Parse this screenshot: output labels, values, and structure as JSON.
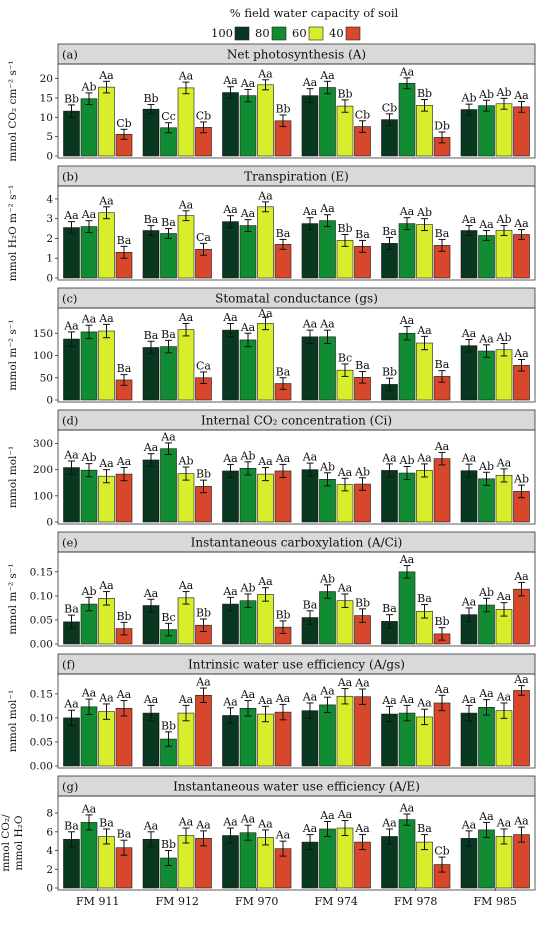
{
  "legend": {
    "title": "% field water capacity of soil",
    "items": [
      {
        "label": "100",
        "color": "#08381f"
      },
      {
        "label": "80",
        "color": "#118c32"
      },
      {
        "label": "60",
        "color": "#d8ee2c"
      },
      {
        "label": "40",
        "color": "#d7472b"
      }
    ]
  },
  "chart_data": [
    {
      "type": "bar",
      "letter": "(a)",
      "title": "Net photosynthesis (A)",
      "ylabel": [
        "mmol CO₂ cm⁻² s⁻¹"
      ],
      "ylim": [
        0,
        23
      ],
      "yticks": [
        0,
        5,
        10,
        15,
        20
      ],
      "categories": [
        "FM 911",
        "FM 912",
        "FM 970",
        "FM 974",
        "FM 978",
        "FM 985"
      ],
      "series": [
        {
          "name": "100",
          "values": [
            11.6,
            12.1,
            16.4,
            15.6,
            9.4,
            12.0
          ],
          "errors": [
            1.6,
            1.2,
            1.5,
            1.8,
            1.5,
            1.4
          ],
          "labels": [
            "Bb",
            "Bb",
            "Aa",
            "Aa",
            "Cb",
            "Ab"
          ]
        },
        {
          "name": "80",
          "values": [
            14.8,
            7.3,
            15.6,
            17.7,
            18.8,
            13.0
          ],
          "errors": [
            1.5,
            1.3,
            1.6,
            1.6,
            1.4,
            1.4
          ],
          "labels": [
            "Ab",
            "Cc",
            "Aa",
            "Aa",
            "Aa",
            "Ab"
          ]
        },
        {
          "name": "60",
          "values": [
            17.8,
            17.6,
            18.4,
            12.9,
            13.1,
            13.5
          ],
          "errors": [
            1.5,
            1.5,
            1.3,
            1.6,
            1.5,
            1.4
          ],
          "labels": [
            "Aa",
            "Aa",
            "Aa",
            "Bb",
            "Bb",
            "Ab"
          ]
        },
        {
          "name": "40",
          "values": [
            5.6,
            7.4,
            9.1,
            7.6,
            4.8,
            12.7
          ],
          "errors": [
            1.3,
            1.4,
            1.5,
            1.5,
            1.4,
            1.4
          ],
          "labels": [
            "Cb",
            "Cb",
            "Bb",
            "Cb",
            "Db",
            "Aa"
          ]
        }
      ]
    },
    {
      "type": "bar",
      "letter": "(b)",
      "title": "Transpiration (E)",
      "ylabel": [
        "mmol H₂O m⁻² s⁻¹"
      ],
      "ylim": [
        0,
        4.5
      ],
      "yticks": [
        0,
        1,
        2,
        3,
        4
      ],
      "categories": [
        "FM 911",
        "FM 912",
        "FM 970",
        "FM 974",
        "FM 978",
        "FM 985"
      ],
      "series": [
        {
          "name": "100",
          "values": [
            2.55,
            2.4,
            2.85,
            2.75,
            1.75,
            2.4
          ],
          "errors": [
            0.3,
            0.25,
            0.3,
            0.3,
            0.3,
            0.25
          ],
          "labels": [
            "Aa",
            "Ba",
            "Aa",
            "Aa",
            "Ba",
            "Aa"
          ]
        },
        {
          "name": "80",
          "values": [
            2.6,
            2.25,
            2.65,
            2.9,
            2.75,
            2.15
          ],
          "errors": [
            0.3,
            0.25,
            0.3,
            0.3,
            0.3,
            0.25
          ],
          "labels": [
            "Aa",
            "Ba",
            "Aa",
            "Aa",
            "Aa",
            "Aa"
          ]
        },
        {
          "name": "60",
          "values": [
            3.3,
            3.15,
            3.6,
            1.9,
            2.7,
            2.4
          ],
          "errors": [
            0.3,
            0.25,
            0.25,
            0.3,
            0.3,
            0.25
          ],
          "labels": [
            "Aa",
            "Aa",
            "Aa",
            "Bb",
            "Ab",
            "Ab"
          ]
        },
        {
          "name": "40",
          "values": [
            1.3,
            1.45,
            1.7,
            1.6,
            1.65,
            2.2
          ],
          "errors": [
            0.3,
            0.3,
            0.25,
            0.3,
            0.3,
            0.25
          ],
          "labels": [
            "Ba",
            "Ca",
            "Ba",
            "Ba",
            "Ba",
            "Aa"
          ]
        }
      ]
    },
    {
      "type": "bar",
      "letter": "(c)",
      "title": "Stomatal conductance (gs)",
      "ylabel": [
        "mmol m⁻² s⁻¹"
      ],
      "ylim": [
        0,
        200
      ],
      "yticks": [
        0,
        50,
        100,
        150
      ],
      "categories": [
        "FM 911",
        "FM 912",
        "FM 970",
        "FM 974",
        "FM 978",
        "FM 985"
      ],
      "series": [
        {
          "name": "100",
          "values": [
            137,
            118,
            157,
            142,
            35,
            122
          ],
          "errors": [
            16,
            14,
            15,
            15,
            14,
            14
          ],
          "labels": [
            "Aa",
            "Ba",
            "Aa",
            "Aa",
            "Bb",
            "Aa"
          ]
        },
        {
          "name": "80",
          "values": [
            153,
            120,
            135,
            142,
            150,
            110
          ],
          "errors": [
            15,
            14,
            15,
            15,
            15,
            14
          ],
          "labels": [
            "Aa",
            "Ba",
            "Aa",
            "Aa",
            "Aa",
            "Aa"
          ]
        },
        {
          "name": "60",
          "values": [
            155,
            158,
            172,
            67,
            128,
            113
          ],
          "errors": [
            15,
            14,
            14,
            14,
            15,
            14
          ],
          "labels": [
            "Aa",
            "Aa",
            "Aa",
            "Bc",
            "Aa",
            "Ab"
          ]
        },
        {
          "name": "40",
          "values": [
            45,
            50,
            37,
            51,
            53,
            78
          ],
          "errors": [
            12,
            13,
            13,
            13,
            13,
            13
          ],
          "labels": [
            "Ba",
            "Ca",
            "Ba",
            "Ba",
            "Ba",
            "Aa"
          ]
        }
      ]
    },
    {
      "type": "bar",
      "letter": "(d)",
      "title": "Internal CO₂ concentration (Ci)",
      "ylabel": [
        "mmol mol⁻¹"
      ],
      "ylim": [
        0,
        340
      ],
      "yticks": [
        0,
        100,
        200,
        300
      ],
      "categories": [
        "FM 911",
        "FM 912",
        "FM 970",
        "FM 974",
        "FM 978",
        "FM 985"
      ],
      "series": [
        {
          "name": "100",
          "values": [
            208,
            237,
            195,
            200,
            197,
            196
          ],
          "errors": [
            25,
            24,
            25,
            25,
            25,
            25
          ],
          "labels": [
            "Aa",
            "Aa",
            "Aa",
            "Aa",
            "Aa",
            "Aa"
          ]
        },
        {
          "name": "80",
          "values": [
            198,
            280,
            205,
            163,
            187,
            165
          ],
          "errors": [
            25,
            22,
            25,
            25,
            25,
            25
          ],
          "labels": [
            "Ab",
            "Aa",
            "Ab",
            "Ab",
            "Ab",
            "Ab"
          ]
        },
        {
          "name": "60",
          "values": [
            175,
            185,
            183,
            143,
            197,
            178
          ],
          "errors": [
            25,
            25,
            25,
            24,
            25,
            25
          ],
          "labels": [
            "Aa",
            "Ab",
            "Aa",
            "Aa",
            "Aa",
            "Aa"
          ]
        },
        {
          "name": "40",
          "values": [
            183,
            136,
            195,
            145,
            242,
            117
          ],
          "errors": [
            25,
            24,
            25,
            24,
            24,
            24
          ],
          "labels": [
            "Aa",
            "Bb",
            "Aa",
            "Ab",
            "Aa",
            "Ab"
          ]
        }
      ]
    },
    {
      "type": "bar",
      "letter": "(e)",
      "title": "Instantaneous carboxylation (A/Ci)",
      "ylabel": [
        "mmol m⁻² s⁻¹"
      ],
      "ylim": [
        0,
        0.185
      ],
      "yticks": [
        0.0,
        0.05,
        0.1,
        0.15
      ],
      "categories": [
        "FM 911",
        "FM 912",
        "FM 970",
        "FM 974",
        "FM 978",
        "FM 985"
      ],
      "series": [
        {
          "name": "100",
          "values": [
            0.046,
            0.08,
            0.083,
            0.055,
            0.047,
            0.061
          ],
          "errors": [
            0.014,
            0.013,
            0.014,
            0.014,
            0.014,
            0.014
          ],
          "labels": [
            "Ba",
            "Aa",
            "Aa",
            "Ba",
            "Ba",
            "Aa"
          ]
        },
        {
          "name": "80",
          "values": [
            0.083,
            0.03,
            0.09,
            0.109,
            0.15,
            0.081
          ],
          "errors": [
            0.014,
            0.013,
            0.014,
            0.014,
            0.013,
            0.014
          ],
          "labels": [
            "Ab",
            "Bc",
            "Ab",
            "Ab",
            "Aa",
            "Ab"
          ]
        },
        {
          "name": "60",
          "values": [
            0.095,
            0.096,
            0.103,
            0.09,
            0.068,
            0.072
          ],
          "errors": [
            0.014,
            0.013,
            0.014,
            0.014,
            0.014,
            0.014
          ],
          "labels": [
            "Aa",
            "Aa",
            "Aa",
            "Aa",
            "Ba",
            "Aa"
          ]
        },
        {
          "name": "40",
          "values": [
            0.032,
            0.039,
            0.035,
            0.059,
            0.021,
            0.114
          ],
          "errors": [
            0.013,
            0.013,
            0.013,
            0.014,
            0.013,
            0.014
          ],
          "labels": [
            "Bb",
            "Bb",
            "Bb",
            "Bb",
            "Bb",
            "Aa"
          ]
        }
      ]
    },
    {
      "type": "bar",
      "letter": "(f)",
      "title": "Intrinsic water use efficiency (A/gs)",
      "ylabel": [
        "mmol mol⁻¹"
      ],
      "ylim": [
        0,
        0.185
      ],
      "yticks": [
        0.0,
        0.05,
        0.1,
        0.15
      ],
      "categories": [
        "FM 911",
        "FM 912",
        "FM 970",
        "FM 974",
        "FM 978",
        "FM 985"
      ],
      "series": [
        {
          "name": "100",
          "values": [
            0.1,
            0.11,
            0.105,
            0.115,
            0.108,
            0.11
          ],
          "errors": [
            0.016,
            0.016,
            0.016,
            0.016,
            0.016,
            0.016
          ],
          "labels": [
            "Aa",
            "Aa",
            "Aa",
            "Aa",
            "Aa",
            "Aa"
          ]
        },
        {
          "name": "80",
          "values": [
            0.123,
            0.056,
            0.12,
            0.127,
            0.11,
            0.122
          ],
          "errors": [
            0.016,
            0.015,
            0.016,
            0.016,
            0.016,
            0.016
          ],
          "labels": [
            "Aa",
            "Bb",
            "Aa",
            "Aa",
            "Aa",
            "Aa"
          ]
        },
        {
          "name": "60",
          "values": [
            0.113,
            0.11,
            0.108,
            0.145,
            0.102,
            0.115
          ],
          "errors": [
            0.016,
            0.016,
            0.016,
            0.016,
            0.016,
            0.016
          ],
          "labels": [
            "Aa",
            "Aa",
            "Aa",
            "Aa",
            "Aa",
            "Aa"
          ]
        },
        {
          "name": "40",
          "values": [
            0.12,
            0.147,
            0.112,
            0.144,
            0.131,
            0.157
          ],
          "errors": [
            0.016,
            0.015,
            0.016,
            0.016,
            0.016,
            0.01
          ],
          "labels": [
            "Aa",
            "Aa",
            "Aa",
            "Aa",
            "Aa",
            "Aa"
          ]
        }
      ]
    },
    {
      "type": "bar",
      "letter": "(g)",
      "title": "Instantaneous water use efficiency (A/E)",
      "ylabel": [
        "mmol CO₂/",
        "mmol H₂O"
      ],
      "ylim": [
        0,
        9.5
      ],
      "yticks": [
        0,
        2,
        4,
        6,
        8
      ],
      "categories": [
        "FM 911",
        "FM 912",
        "FM 970",
        "FM 974",
        "FM 978",
        "FM 985"
      ],
      "series": [
        {
          "name": "100",
          "values": [
            5.2,
            5.2,
            5.6,
            4.9,
            5.5,
            5.3
          ],
          "errors": [
            0.8,
            0.8,
            0.8,
            0.8,
            0.8,
            0.8
          ],
          "labels": [
            "Ba",
            "Aa",
            "Aa",
            "Aa",
            "Aa",
            "Aa"
          ]
        },
        {
          "name": "80",
          "values": [
            7.0,
            3.2,
            5.9,
            6.3,
            7.3,
            6.2
          ],
          "errors": [
            0.8,
            0.8,
            0.8,
            0.8,
            0.6,
            0.8
          ],
          "labels": [
            "Aa",
            "Bb",
            "Aa",
            "Aa",
            "Aa",
            "Aa"
          ]
        },
        {
          "name": "60",
          "values": [
            5.5,
            5.6,
            5.4,
            6.4,
            4.9,
            5.5
          ],
          "errors": [
            0.8,
            0.8,
            0.8,
            0.8,
            0.8,
            0.8
          ],
          "labels": [
            "Ba",
            "Aa",
            "Aa",
            "Aa",
            "Ba",
            "Aa"
          ]
        },
        {
          "name": "40",
          "values": [
            4.3,
            5.3,
            4.2,
            4.9,
            2.5,
            5.7
          ],
          "errors": [
            0.8,
            0.8,
            0.8,
            0.8,
            0.8,
            0.8
          ],
          "labels": [
            "Ba",
            "Aa",
            "Aa",
            "Aa",
            "Cb",
            "Aa"
          ]
        }
      ]
    }
  ]
}
